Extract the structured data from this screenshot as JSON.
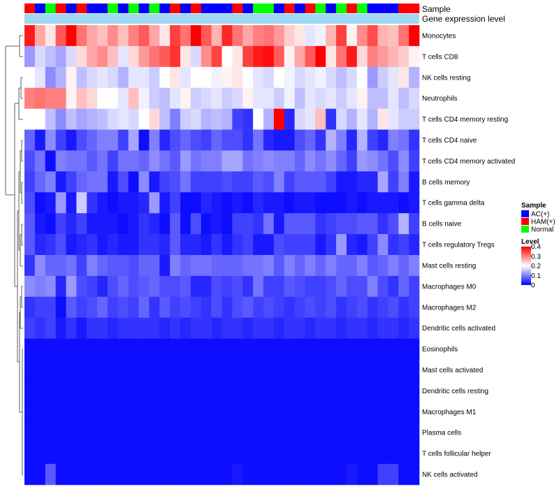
{
  "chart_data": {
    "type": "heatmap",
    "title": "",
    "annotation_row_labels": [
      "Sample",
      "Gene expression level"
    ],
    "legend": {
      "sample_title": "Sample",
      "sample_entries": [
        {
          "label": "AC(+)",
          "color": "#0000ff"
        },
        {
          "label": "HAM(+)",
          "color": "#ff0000"
        },
        {
          "label": "Normal",
          "color": "#00ff00"
        }
      ],
      "level_title": "Level",
      "level_ticks": [
        "0.4",
        "0.3",
        "0.2",
        "0.1",
        "0"
      ],
      "level_min": 0,
      "level_max": 0.4
    },
    "colors": {
      "low": "#0000ff",
      "mid": "#ffffff",
      "high": "#ff0000",
      "ac": "#0000ff",
      "ham": "#ff0000",
      "normal": "#00ff00"
    },
    "sample_groups": [
      "H",
      "A",
      "N",
      "H",
      "A",
      "H",
      "A",
      "A",
      "N",
      "A",
      "N",
      "A",
      "N",
      "A",
      "H",
      "A",
      "H",
      "A",
      "A",
      "A",
      "H",
      "A",
      "N",
      "N",
      "A",
      "H",
      "A",
      "H",
      "N",
      "A",
      "N",
      "H",
      "N",
      "A",
      "A",
      "A",
      "H",
      "H"
    ],
    "rows": [
      "Monocytes",
      "T cells CD8",
      "NK cells resting",
      "Neutrophils",
      "T cells CD4 memory resting",
      "T cells CD4 naive",
      "T cells CD4 memory activated",
      "B cells memory",
      "T cells gamma delta",
      "B cells naive",
      "T cells regulatory  Tregs",
      "Mast cells resting",
      "Macrophages M0",
      "Macrophages M2",
      "Dendritic cells activated",
      "Eosinophils",
      "Mast cells activated",
      "Dendritic cells resting",
      "Macrophages M1",
      "Plasma cells",
      "T cells follicular helper",
      "NK cells activated"
    ],
    "values": [
      [
        0.38,
        0.27,
        0.22,
        0.33,
        0.4,
        0.31,
        0.27,
        0.25,
        0.29,
        0.25,
        0.3,
        0.33,
        0.27,
        0.22,
        0.35,
        0.31,
        0.4,
        0.33,
        0.26,
        0.37,
        0.31,
        0.27,
        0.3,
        0.31,
        0.28,
        0.24,
        0.22,
        0.18,
        0.19,
        0.26,
        0.35,
        0.21,
        0.29,
        0.34,
        0.26,
        0.25,
        0.31,
        0.4
      ],
      [
        0.12,
        0.17,
        0.15,
        0.13,
        0.17,
        0.23,
        0.27,
        0.29,
        0.25,
        0.18,
        0.23,
        0.28,
        0.31,
        0.33,
        0.36,
        0.22,
        0.17,
        0.29,
        0.35,
        0.2,
        0.22,
        0.35,
        0.38,
        0.39,
        0.33,
        0.21,
        0.27,
        0.33,
        0.4,
        0.22,
        0.31,
        0.38,
        0.23,
        0.3,
        0.28,
        0.26,
        0.24,
        0.21
      ],
      [
        0.2,
        0.18,
        0.11,
        0.14,
        0.21,
        0.15,
        0.17,
        0.18,
        0.17,
        0.14,
        0.18,
        0.18,
        0.16,
        0.2,
        0.22,
        0.18,
        0.2,
        0.2,
        0.19,
        0.21,
        0.22,
        0.2,
        0.18,
        0.17,
        0.2,
        0.19,
        0.17,
        0.18,
        0.19,
        0.17,
        0.15,
        0.17,
        0.2,
        0.12,
        0.16,
        0.18,
        0.22,
        0.14
      ],
      [
        0.3,
        0.31,
        0.3,
        0.3,
        0.21,
        0.25,
        0.23,
        0.2,
        0.2,
        0.18,
        0.25,
        0.19,
        0.16,
        0.15,
        0.18,
        0.21,
        0.16,
        0.17,
        0.18,
        0.16,
        0.17,
        0.21,
        0.18,
        0.18,
        0.16,
        0.19,
        0.15,
        0.18,
        0.17,
        0.18,
        0.16,
        0.18,
        0.21,
        0.15,
        0.15,
        0.18,
        0.15,
        0.17
      ],
      [
        0.2,
        0.2,
        0.15,
        0.11,
        0.15,
        0.13,
        0.14,
        0.15,
        0.17,
        0.18,
        0.17,
        0.2,
        0.23,
        0.15,
        0.1,
        0.16,
        0.17,
        0.14,
        0.15,
        0.14,
        0.05,
        0.04,
        0.2,
        0.14,
        0.4,
        0.03,
        0.17,
        0.18,
        0.25,
        0.04,
        0.17,
        0.14,
        0.18,
        0.14,
        0.22,
        0.18,
        0.16,
        0.16
      ],
      [
        0.08,
        0.02,
        0.11,
        0.05,
        0.02,
        0.06,
        0.08,
        0.1,
        0.1,
        0.05,
        0.13,
        0.01,
        0.1,
        0.03,
        0.06,
        0.08,
        0.06,
        0.05,
        0.08,
        0.06,
        0.06,
        0.04,
        0.09,
        0.03,
        0.02,
        0.02,
        0.06,
        0.08,
        0.04,
        0.14,
        0.1,
        0.03,
        0.14,
        0.05,
        0.03,
        0.1,
        0.09,
        0.04
      ],
      [
        0.06,
        0.09,
        0.01,
        0.1,
        0.09,
        0.09,
        0.07,
        0.09,
        0.05,
        0.09,
        0.09,
        0.08,
        0.11,
        0.09,
        0.07,
        0.12,
        0.09,
        0.1,
        0.1,
        0.13,
        0.13,
        0.09,
        0.1,
        0.11,
        0.1,
        0.1,
        0.08,
        0.11,
        0.09,
        0.11,
        0.08,
        0.05,
        0.12,
        0.11,
        0.09,
        0.06,
        0.11,
        0.05
      ],
      [
        0.05,
        0.08,
        0.1,
        0.02,
        0.05,
        0.08,
        0.09,
        0.09,
        0.02,
        0.06,
        0.01,
        0.11,
        0.02,
        0.05,
        0.06,
        0.09,
        0.05,
        0.05,
        0.05,
        0.06,
        0.05,
        0.05,
        0.07,
        0.06,
        0.1,
        0.05,
        0.07,
        0.07,
        0.07,
        0.05,
        0.02,
        0.02,
        0.03,
        0.03,
        0.13,
        0.05,
        0.1,
        0.02
      ],
      [
        0.06,
        0.01,
        0.02,
        0.12,
        0.02,
        0.16,
        0.04,
        0.02,
        0.01,
        0.02,
        0.02,
        0.03,
        0.12,
        0.02,
        0.05,
        0.01,
        0.01,
        0.03,
        0.02,
        0.01,
        0.02,
        0.01,
        0.03,
        0.02,
        0.02,
        0.01,
        0.02,
        0.02,
        0.01,
        0.01,
        0.01,
        0.02,
        0.01,
        0.02,
        0.02,
        0.02,
        0.01,
        0.02
      ],
      [
        0.07,
        0.02,
        0.01,
        0.05,
        0.03,
        0.05,
        0.02,
        0.02,
        0.02,
        0.01,
        0.02,
        0.04,
        0.03,
        0.01,
        0.07,
        0.01,
        0.06,
        0.01,
        0.02,
        0.01,
        0.05,
        0.05,
        0.04,
        0.09,
        0.02,
        0.07,
        0.07,
        0.07,
        0.04,
        0.05,
        0.06,
        0.06,
        0.07,
        0.07,
        0.04,
        0.06,
        0.14,
        0.05
      ],
      [
        0.07,
        0.03,
        0.04,
        0.06,
        0.02,
        0.03,
        0.04,
        0.02,
        0.03,
        0.02,
        0.02,
        0.04,
        0.04,
        0.03,
        0.07,
        0.03,
        0.03,
        0.02,
        0.04,
        0.02,
        0.04,
        0.05,
        0.02,
        0.02,
        0.06,
        0.05,
        0.05,
        0.05,
        0.02,
        0.04,
        0.12,
        0.03,
        0.02,
        0.05,
        0.11,
        0.04,
        0.05,
        0.03
      ],
      [
        0.04,
        0.11,
        0.08,
        0.08,
        0.09,
        0.05,
        0.1,
        0.08,
        0.07,
        0.07,
        0.06,
        0.08,
        0.08,
        0.02,
        0.1,
        0.08,
        0.09,
        0.09,
        0.08,
        0.08,
        0.08,
        0.09,
        0.09,
        0.1,
        0.07,
        0.1,
        0.08,
        0.1,
        0.08,
        0.1,
        0.08,
        0.08,
        0.1,
        0.07,
        0.08,
        0.1,
        0.08,
        0.1
      ],
      [
        0.11,
        0.1,
        0.11,
        0.03,
        0.12,
        0.06,
        0.05,
        0.03,
        0.06,
        0.08,
        0.06,
        0.07,
        0.08,
        0.06,
        0.06,
        0.07,
        0.03,
        0.03,
        0.06,
        0.05,
        0.06,
        0.04,
        0.09,
        0.05,
        0.05,
        0.07,
        0.06,
        0.05,
        0.05,
        0.06,
        0.08,
        0.06,
        0.06,
        0.1,
        0.06,
        0.04,
        0.08,
        0.05
      ],
      [
        0.04,
        0.05,
        0.05,
        0.01,
        0.07,
        0.05,
        0.06,
        0.08,
        0.05,
        0.06,
        0.05,
        0.08,
        0.04,
        0.07,
        0.05,
        0.06,
        0.05,
        0.04,
        0.06,
        0.04,
        0.06,
        0.07,
        0.05,
        0.06,
        0.05,
        0.04,
        0.05,
        0.06,
        0.05,
        0.06,
        0.04,
        0.05,
        0.06,
        0.04,
        0.05,
        0.06,
        0.04,
        0.05
      ],
      [
        0.05,
        0.04,
        0.05,
        0.02,
        0.04,
        0.02,
        0.04,
        0.04,
        0.03,
        0.04,
        0.04,
        0.04,
        0.04,
        0.03,
        0.04,
        0.03,
        0.04,
        0.04,
        0.03,
        0.04,
        0.04,
        0.03,
        0.04,
        0.04,
        0.03,
        0.04,
        0.04,
        0.03,
        0.04,
        0.04,
        0.03,
        0.04,
        0.04,
        0.03,
        0.04,
        0.04,
        0.03,
        0.04
      ],
      [
        0.01,
        0.01,
        0.01,
        0.01,
        0.01,
        0.01,
        0.01,
        0.01,
        0.01,
        0.01,
        0.01,
        0.01,
        0.01,
        0.01,
        0.01,
        0.01,
        0.01,
        0.01,
        0.01,
        0.01,
        0.01,
        0.01,
        0.01,
        0.01,
        0.01,
        0.01,
        0.01,
        0.01,
        0.01,
        0.01,
        0.01,
        0.01,
        0.01,
        0.01,
        0.01,
        0.01,
        0.01,
        0.01
      ],
      [
        0.01,
        0.01,
        0.01,
        0.01,
        0.01,
        0.01,
        0.01,
        0.01,
        0.01,
        0.01,
        0.01,
        0.01,
        0.01,
        0.01,
        0.01,
        0.01,
        0.01,
        0.01,
        0.01,
        0.01,
        0.01,
        0.01,
        0.01,
        0.01,
        0.01,
        0.01,
        0.01,
        0.01,
        0.01,
        0.01,
        0.01,
        0.01,
        0.01,
        0.01,
        0.01,
        0.01,
        0.01,
        0.01
      ],
      [
        0.01,
        0.01,
        0.01,
        0.01,
        0.01,
        0.01,
        0.01,
        0.01,
        0.01,
        0.01,
        0.01,
        0.01,
        0.01,
        0.01,
        0.01,
        0.01,
        0.01,
        0.01,
        0.01,
        0.01,
        0.01,
        0.01,
        0.01,
        0.01,
        0.01,
        0.01,
        0.01,
        0.01,
        0.01,
        0.01,
        0.01,
        0.01,
        0.01,
        0.01,
        0.01,
        0.01,
        0.01,
        0.01
      ],
      [
        0.01,
        0.01,
        0.01,
        0.01,
        0.01,
        0.01,
        0.01,
        0.01,
        0.01,
        0.01,
        0.01,
        0.01,
        0.01,
        0.01,
        0.01,
        0.01,
        0.01,
        0.01,
        0.01,
        0.01,
        0.01,
        0.01,
        0.01,
        0.01,
        0.01,
        0.01,
        0.01,
        0.01,
        0.01,
        0.01,
        0.01,
        0.01,
        0.01,
        0.01,
        0.01,
        0.01,
        0.01,
        0.01
      ],
      [
        0.01,
        0.01,
        0.01,
        0.01,
        0.01,
        0.01,
        0.01,
        0.01,
        0.01,
        0.01,
        0.01,
        0.01,
        0.01,
        0.01,
        0.01,
        0.01,
        0.01,
        0.01,
        0.01,
        0.01,
        0.01,
        0.01,
        0.01,
        0.01,
        0.01,
        0.01,
        0.01,
        0.01,
        0.01,
        0.01,
        0.01,
        0.01,
        0.01,
        0.01,
        0.01,
        0.01,
        0.01,
        0.01
      ],
      [
        0.01,
        0.01,
        0.01,
        0.01,
        0.01,
        0.01,
        0.01,
        0.01,
        0.01,
        0.01,
        0.01,
        0.01,
        0.01,
        0.01,
        0.01,
        0.01,
        0.01,
        0.01,
        0.01,
        0.01,
        0.01,
        0.01,
        0.01,
        0.01,
        0.01,
        0.01,
        0.01,
        0.01,
        0.01,
        0.01,
        0.01,
        0.01,
        0.01,
        0.01,
        0.01,
        0.01,
        0.01,
        0.01
      ],
      [
        0.01,
        0.01,
        0.07,
        0.01,
        0.01,
        0.01,
        0.01,
        0.01,
        0.01,
        0.01,
        0.01,
        0.01,
        0.01,
        0.01,
        0.01,
        0.01,
        0.01,
        0.01,
        0.01,
        0.01,
        0.02,
        0.01,
        0.01,
        0.01,
        0.01,
        0.01,
        0.01,
        0.01,
        0.01,
        0.01,
        0.01,
        0.02,
        0.01,
        0.01,
        0.05,
        0.05,
        0.01,
        0.01
      ]
    ]
  }
}
